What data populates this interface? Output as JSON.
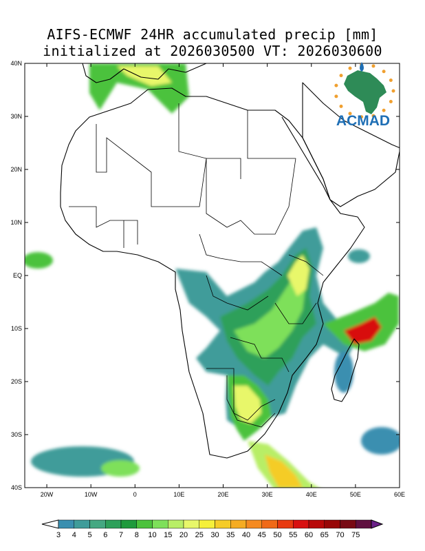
{
  "title": {
    "line1": "AIFS-ECMWF 24HR accumulated precip [mm]",
    "line2": "initialized at 2026030500 VT: 2026030600"
  },
  "logo": {
    "text": "ACMAD",
    "text_color": "#1f6fb5",
    "continent_color": "#2e8b57",
    "accent_color": "#f0a030"
  },
  "map": {
    "lon_range": [
      -25,
      60
    ],
    "lat_range": [
      -40,
      40
    ],
    "lat_ticks": [
      {
        "value": 40,
        "label": "40N"
      },
      {
        "value": 30,
        "label": "30N"
      },
      {
        "value": 20,
        "label": "20N"
      },
      {
        "value": 10,
        "label": "10N"
      },
      {
        "value": 0,
        "label": "EQ"
      },
      {
        "value": -10,
        "label": "10S"
      },
      {
        "value": -20,
        "label": "20S"
      },
      {
        "value": -30,
        "label": "30S"
      },
      {
        "value": -40,
        "label": "40S"
      }
    ],
    "lon_ticks": [
      {
        "value": -20,
        "label": "20W"
      },
      {
        "value": -10,
        "label": "10W"
      },
      {
        "value": 0,
        "label": "0"
      },
      {
        "value": 10,
        "label": "10E"
      },
      {
        "value": 20,
        "label": "20E"
      },
      {
        "value": 30,
        "label": "30E"
      },
      {
        "value": 40,
        "label": "40E"
      },
      {
        "value": 50,
        "label": "50E"
      },
      {
        "value": 60,
        "label": "60E"
      }
    ]
  },
  "colorbar": {
    "labels": [
      "3",
      "4",
      "5",
      "6",
      "7",
      "8",
      "10",
      "15",
      "20",
      "25",
      "30",
      "35",
      "40",
      "45",
      "50",
      "55",
      "60",
      "65",
      "70",
      "75"
    ],
    "colors": [
      "#3a8fb0",
      "#3f9c9a",
      "#45a882",
      "#2ea05a",
      "#1f9a3c",
      "#4cc23c",
      "#7ee05a",
      "#b8ee66",
      "#e8f76a",
      "#f5f03a",
      "#f5cc28",
      "#f5ac22",
      "#f58a20",
      "#f06a18",
      "#e83a10",
      "#d81010",
      "#b80808",
      "#980606",
      "#780a14",
      "#601040"
    ],
    "under_color": "#ffffff",
    "over_color": "#6a2088"
  }
}
